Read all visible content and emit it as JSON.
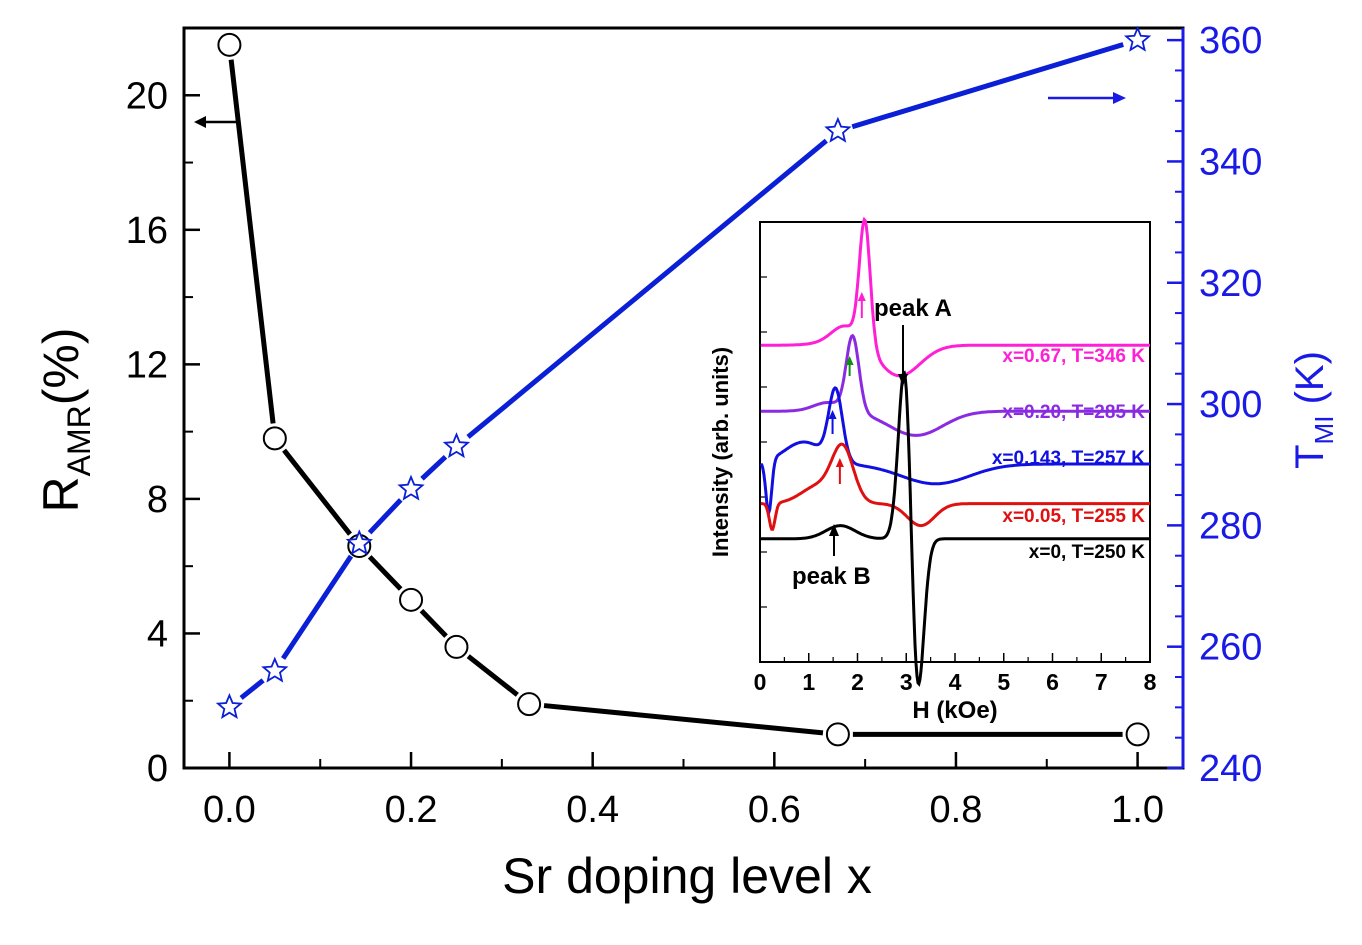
{
  "colors": {
    "left_series": "#000000",
    "right_series": "#0a1fd6",
    "right_axis": "#1a1ae6",
    "inset_pink": "#ff1fd6",
    "inset_purple": "#8a2be2",
    "inset_blue": "#1010e0",
    "inset_red": "#e01010",
    "inset_black": "#000000",
    "inset_green": "#109010"
  },
  "chart_data": [
    {
      "type": "line",
      "xlabel": "Sr doping level x",
      "ylabel_left": {
        "main": "R",
        "sub": "AMR",
        "tail": "(%)"
      },
      "ylabel_right": {
        "main": "T",
        "sub": "MI",
        "tail": " (K)"
      },
      "xlim": [
        -0.05,
        1.05
      ],
      "ylim_left": [
        0,
        22
      ],
      "ylim_right": [
        240,
        362
      ],
      "x_ticks": [
        "0.0",
        "0.2",
        "0.4",
        "0.6",
        "0.8",
        "1.0"
      ],
      "y_ticks_left": [
        "0",
        "4",
        "8",
        "12",
        "16",
        "20"
      ],
      "y_ticks_right": [
        "240",
        "260",
        "280",
        "300",
        "320",
        "340",
        "360"
      ],
      "grid": false,
      "series": [
        {
          "axis": "left",
          "marker": "circle",
          "x": [
            0,
            0.05,
            0.143,
            0.2,
            0.25,
            0.33,
            0.67,
            1.0
          ],
          "values": [
            21.5,
            9.8,
            6.6,
            5.0,
            3.6,
            1.9,
            1.0,
            1.0
          ]
        },
        {
          "axis": "right",
          "marker": "star",
          "x": [
            0,
            0.05,
            0.143,
            0.2,
            0.25,
            0.67,
            1.0
          ],
          "values": [
            250,
            256,
            277,
            286,
            293,
            345,
            360
          ]
        }
      ]
    },
    {
      "type": "line",
      "inset": true,
      "xlabel": "H (kOe)",
      "ylabel": "Intensity (arb. units)",
      "xlim": [
        0,
        8
      ],
      "x_ticks": [
        "0",
        "1",
        "2",
        "3",
        "4",
        "5",
        "6",
        "7",
        "8"
      ],
      "annotations": [
        "peak A",
        "peak B"
      ],
      "series": [
        {
          "name": "x=0.67, T=346 K",
          "baseline": 0.72,
          "peak_H": 2.15
        },
        {
          "name": "x=0.20, T=285 K",
          "baseline": 0.57,
          "peak_H": 1.9
        },
        {
          "name": "x=0.143, T=257 K",
          "baseline": 0.45,
          "peak_H": 1.55
        },
        {
          "name": "x=0.05, T=255 K",
          "baseline": 0.36,
          "peak_H": 1.7
        },
        {
          "name": "x=0, T=250 K",
          "baseline": 0.28,
          "peak_H": 2.95
        }
      ]
    }
  ]
}
